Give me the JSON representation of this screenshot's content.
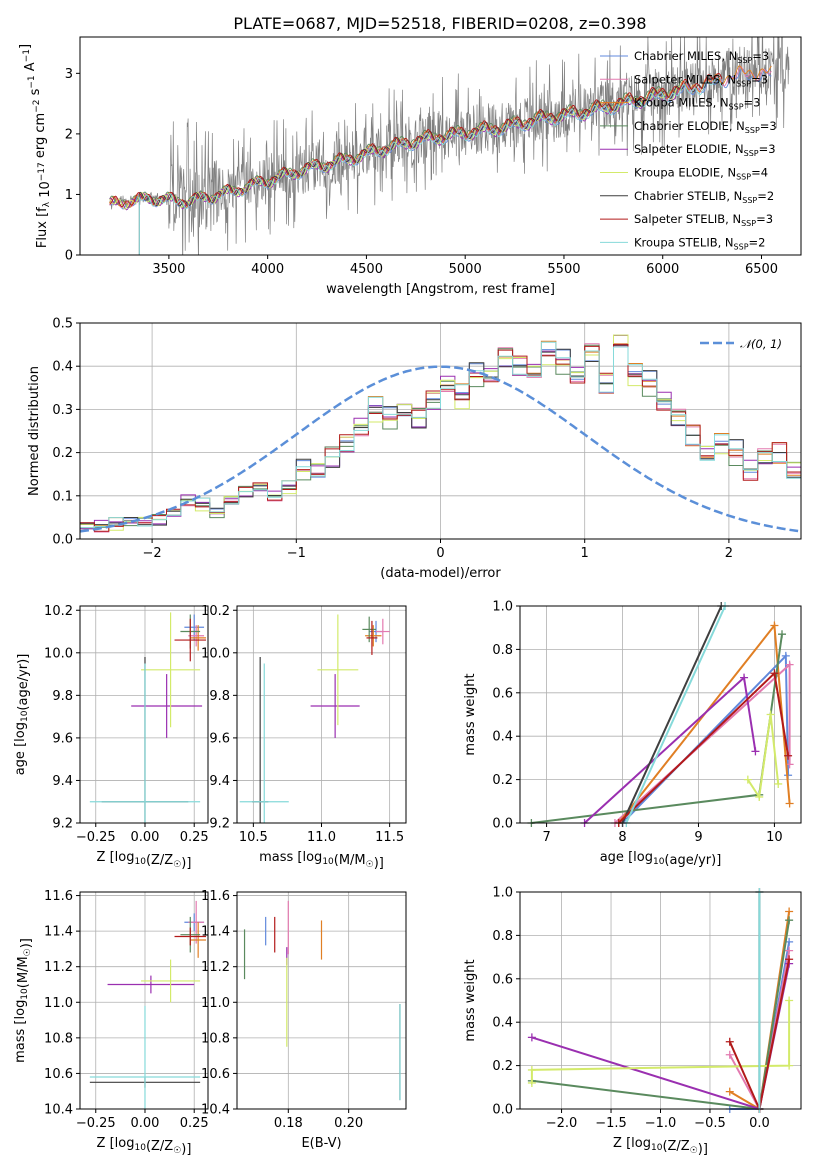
{
  "colors": {
    "Chabrier MILES": "#6189dc",
    "Salpeter MILES": "#e37ab0",
    "Kroupa MILES": "#e07f24",
    "Chabrier ELODIE": "#5a8a5e",
    "Salpeter ELODIE": "#9a2fb0",
    "Kroupa ELODIE": "#d3ea6a",
    "Chabrier STELIB": "#3f3f3f",
    "Salpeter STELIB": "#b21a1a",
    "Kroupa STELIB": "#86dada",
    "data": "#808080",
    "normal": "#5b8fd8"
  },
  "chart_data": [
    {
      "id": "spectrum",
      "type": "line",
      "title": "PLATE=0687, MJD=52518, FIBERID=0208, z=0.398",
      "xlabel": "wavelength [Angstrom, rest frame]",
      "ylabel": "Flux [f_λ 10^-17 erg cm^-2 s^-1 A^-1]",
      "xlim": [
        3050,
        6700
      ],
      "ylim": [
        0,
        3.6
      ],
      "xticks": [
        3500,
        4000,
        4500,
        5000,
        5500,
        6000,
        6500
      ],
      "yticks": [
        0,
        1,
        2,
        3
      ],
      "model_trend": [
        [
          3200,
          0.85
        ],
        [
          3400,
          0.95
        ],
        [
          3600,
          0.9
        ],
        [
          3800,
          1.05
        ],
        [
          4000,
          1.25
        ],
        [
          4200,
          1.45
        ],
        [
          4400,
          1.6
        ],
        [
          4600,
          1.8
        ],
        [
          4800,
          1.95
        ],
        [
          5000,
          2.05
        ],
        [
          5200,
          2.15
        ],
        [
          5400,
          2.3
        ],
        [
          5600,
          2.4
        ],
        [
          5800,
          2.55
        ],
        [
          6000,
          2.7
        ],
        [
          6200,
          2.85
        ],
        [
          6400,
          3.05
        ]
      ],
      "legend": [
        {
          "label": "Chabrier MILES, N",
          "nssp": "=3"
        },
        {
          "label": "Salpeter MILES, N",
          "nssp": "=3"
        },
        {
          "label": "Kroupa MILES, N",
          "nssp": "=3"
        },
        {
          "label": "Chabrier ELODIE, N",
          "nssp": "=3"
        },
        {
          "label": "Salpeter ELODIE, N",
          "nssp": "=3"
        },
        {
          "label": "Kroupa ELODIE, N",
          "nssp": "=4"
        },
        {
          "label": "Chabrier STELIB, N",
          "nssp": "=2"
        },
        {
          "label": "Salpeter STELIB, N",
          "nssp": "=3"
        },
        {
          "label": "Kroupa STELIB, N",
          "nssp": "=2"
        }
      ],
      "legend_sub": "SSP",
      "legend_position": "top-right"
    },
    {
      "id": "residuals",
      "type": "bar",
      "xlabel": "(data-model)/error",
      "ylabel": "Normed distribution",
      "xlim": [
        -2.5,
        2.5
      ],
      "ylim": [
        0,
        0.5
      ],
      "xticks": [
        -2,
        -1,
        0,
        1,
        2
      ],
      "yticks": [
        0.0,
        0.1,
        0.2,
        0.3,
        0.4,
        0.5
      ],
      "bin_edges_start": -2.5,
      "bin_width": 0.1,
      "histogram_mean": [
        0.03,
        0.03,
        0.035,
        0.04,
        0.04,
        0.045,
        0.06,
        0.09,
        0.08,
        0.06,
        0.09,
        0.11,
        0.12,
        0.1,
        0.12,
        0.16,
        0.16,
        0.19,
        0.22,
        0.26,
        0.3,
        0.28,
        0.3,
        0.28,
        0.32,
        0.36,
        0.33,
        0.38,
        0.38,
        0.42,
        0.4,
        0.39,
        0.43,
        0.41,
        0.38,
        0.43,
        0.36,
        0.46,
        0.38,
        0.36,
        0.32,
        0.28,
        0.24,
        0.2,
        0.22,
        0.2,
        0.16,
        0.19,
        0.2,
        0.16,
        0.12,
        0.1,
        0.09,
        0.07,
        0.07,
        0.06,
        0.05,
        0.05,
        0.04,
        0.03
      ],
      "normal_label": "𝒩(0, 1)",
      "legend_position": "top-right"
    },
    {
      "id": "age_Z",
      "type": "scatter",
      "xlabel": "Z [log10(Z/Z☉)]",
      "ylabel": "age  [log10(age/yr)]",
      "xlim": [
        -0.33,
        0.32
      ],
      "ylim": [
        9.2,
        10.22
      ],
      "xticks": [
        -0.25,
        0.0,
        0.25
      ],
      "xticklabels": [
        "−0.25",
        "0.00",
        "0.25"
      ],
      "yticks": [
        9.2,
        9.4,
        9.6,
        9.8,
        10.0,
        10.2
      ],
      "points": [
        {
          "model": "Chabrier MILES",
          "x": 0.25,
          "y": 10.12,
          "ex": 0.05,
          "ey": 0.06
        },
        {
          "model": "Salpeter MILES",
          "x": 0.26,
          "y": 10.08,
          "ex": 0.04,
          "ey": 0.05
        },
        {
          "model": "Kroupa MILES",
          "x": 0.27,
          "y": 10.07,
          "ex": 0.04,
          "ey": 0.06
        },
        {
          "model": "Chabrier ELODIE",
          "x": 0.23,
          "y": 10.1,
          "ex": 0.05,
          "ey": 0.08
        },
        {
          "model": "Salpeter ELODIE",
          "x": 0.11,
          "y": 9.75,
          "ex": 0.18,
          "ey": 0.15
        },
        {
          "model": "Kroupa ELODIE",
          "x": 0.13,
          "y": 9.92,
          "ex": 0.15,
          "ey": 0.27
        },
        {
          "model": "Chabrier STELIB",
          "x": 0.0,
          "y": 9.3,
          "ex": 0.22,
          "ey": 0.68
        },
        {
          "model": "Salpeter STELIB",
          "x": 0.23,
          "y": 10.06,
          "ex": 0.08,
          "ey": 0.1
        },
        {
          "model": "Kroupa STELIB",
          "x": 0.0,
          "y": 9.3,
          "ex": 0.28,
          "ey": 0.65
        }
      ]
    },
    {
      "id": "age_mass",
      "type": "scatter",
      "xlabel": "mass [log10(M/M☉)]",
      "xlim": [
        10.38,
        11.62
      ],
      "ylim": [
        9.2,
        10.22
      ],
      "xticks": [
        10.5,
        11.0,
        11.5
      ],
      "yticks": [
        9.2,
        9.4,
        9.6,
        9.8,
        10.0,
        10.2
      ],
      "points": [
        {
          "model": "Chabrier MILES",
          "x": 11.4,
          "y": 10.1,
          "ex": 0.05,
          "ey": 0.05
        },
        {
          "model": "Salpeter MILES",
          "x": 11.45,
          "y": 10.1,
          "ex": 0.05,
          "ey": 0.06
        },
        {
          "model": "Kroupa MILES",
          "x": 11.38,
          "y": 10.08,
          "ex": 0.06,
          "ey": 0.05
        },
        {
          "model": "Chabrier ELODIE",
          "x": 11.35,
          "y": 10.11,
          "ex": 0.05,
          "ey": 0.06
        },
        {
          "model": "Salpeter ELODIE",
          "x": 11.1,
          "y": 9.75,
          "ex": 0.18,
          "ey": 0.15
        },
        {
          "model": "Kroupa ELODIE",
          "x": 11.12,
          "y": 9.92,
          "ex": 0.15,
          "ey": 0.26
        },
        {
          "model": "Chabrier STELIB",
          "x": 10.55,
          "y": 9.3,
          "ex": 0.06,
          "ey": 0.68
        },
        {
          "model": "Salpeter STELIB",
          "x": 11.37,
          "y": 10.07,
          "ex": 0.04,
          "ey": 0.08
        },
        {
          "model": "Kroupa STELIB",
          "x": 10.58,
          "y": 9.3,
          "ex": 0.18,
          "ey": 0.65
        }
      ]
    },
    {
      "id": "weight_age",
      "type": "line",
      "xlabel": "age  [log10(age/yr)]",
      "ylabel": "mass weight",
      "xlim": [
        6.65,
        10.35
      ],
      "ylim": [
        0,
        1.0
      ],
      "xticks": [
        7,
        8,
        9,
        10
      ],
      "yticks": [
        0.0,
        0.2,
        0.4,
        0.6,
        0.8,
        1.0
      ],
      "series": [
        {
          "model": "Chabrier MILES",
          "x": [
            8.0,
            10.15,
            10.18
          ],
          "y": [
            0.0,
            0.77,
            0.22
          ]
        },
        {
          "model": "Salpeter MILES",
          "x": [
            7.9,
            10.2,
            10.2
          ],
          "y": [
            0.0,
            0.73,
            0.27
          ]
        },
        {
          "model": "Kroupa MILES",
          "x": [
            7.95,
            10.0,
            10.2
          ],
          "y": [
            0.0,
            0.91,
            0.09
          ]
        },
        {
          "model": "Chabrier ELODIE",
          "x": [
            6.8,
            9.8,
            10.1
          ],
          "y": [
            0.0,
            0.13,
            0.87
          ]
        },
        {
          "model": "Salpeter ELODIE",
          "x": [
            7.5,
            9.6,
            9.75
          ],
          "y": [
            0.0,
            0.67,
            0.33
          ]
        },
        {
          "model": "Kroupa ELODIE",
          "x": [
            9.65,
            9.8,
            9.95,
            10.05
          ],
          "y": [
            0.2,
            0.12,
            0.5,
            0.18
          ]
        },
        {
          "model": "Chabrier STELIB",
          "x": [
            8.0,
            9.3
          ],
          "y": [
            0.0,
            1.0
          ]
        },
        {
          "model": "Salpeter STELIB",
          "x": [
            7.95,
            10.0,
            10.18
          ],
          "y": [
            0.0,
            0.69,
            0.31
          ]
        },
        {
          "model": "Kroupa STELIB",
          "x": [
            8.05,
            9.35
          ],
          "y": [
            0.0,
            1.0
          ]
        }
      ]
    },
    {
      "id": "mass_Z",
      "type": "scatter",
      "xlabel": "Z [log10(Z/Z☉)]",
      "ylabel": "mass [log10(M/M☉)]",
      "xlim": [
        -0.33,
        0.32
      ],
      "ylim": [
        10.4,
        11.62
      ],
      "xticks": [
        -0.25,
        0.0,
        0.25
      ],
      "xticklabels": [
        "−0.25",
        "0.00",
        "0.25"
      ],
      "yticks": [
        10.4,
        10.6,
        10.8,
        11.0,
        11.2,
        11.4,
        11.6
      ],
      "points": [
        {
          "model": "Chabrier MILES",
          "x": 0.25,
          "y": 11.45,
          "ex": 0.05,
          "ey": 0.05
        },
        {
          "model": "Salpeter MILES",
          "x": 0.26,
          "y": 11.45,
          "ex": 0.04,
          "ey": 0.12
        },
        {
          "model": "Kroupa MILES",
          "x": 0.27,
          "y": 11.35,
          "ex": 0.04,
          "ey": 0.1
        },
        {
          "model": "Chabrier ELODIE",
          "x": 0.23,
          "y": 11.38,
          "ex": 0.05,
          "ey": 0.1
        },
        {
          "model": "Salpeter ELODIE",
          "x": 0.03,
          "y": 11.1,
          "ex": 0.22,
          "ey": 0.05
        },
        {
          "model": "Kroupa ELODIE",
          "x": 0.13,
          "y": 11.12,
          "ex": 0.15,
          "ey": 0.12
        },
        {
          "model": "Chabrier STELIB",
          "x": 0.0,
          "y": 10.55,
          "ex": 0.28,
          "ey": 0.03
        },
        {
          "model": "Salpeter STELIB",
          "x": 0.23,
          "y": 11.37,
          "ex": 0.08,
          "ey": 0.05
        },
        {
          "model": "Kroupa STELIB",
          "x": 0.0,
          "y": 10.58,
          "ex": 0.28,
          "ey": 0.4
        }
      ]
    },
    {
      "id": "mass_ebv",
      "type": "scatter",
      "xlabel": "E(B-V)",
      "xlim": [
        0.163,
        0.219
      ],
      "ylim": [
        10.4,
        11.62
      ],
      "xticks": [
        0.18,
        0.2
      ],
      "xticklabels": [
        "0.18",
        "0.20"
      ],
      "yticks": [
        10.4,
        10.6,
        10.8,
        11.0,
        11.2,
        11.4,
        11.6
      ],
      "points": [
        {
          "model": "Chabrier MILES",
          "x": 0.1725,
          "y": 11.4,
          "ey": 0.08
        },
        {
          "model": "Salpeter MILES",
          "x": 0.18,
          "y": 11.42,
          "ey": 0.15
        },
        {
          "model": "Kroupa MILES",
          "x": 0.191,
          "y": 11.35,
          "ey": 0.11
        },
        {
          "model": "Chabrier ELODIE",
          "x": 0.1655,
          "y": 11.27,
          "ey": 0.14
        },
        {
          "model": "Salpeter ELODIE",
          "x": 0.1795,
          "y": 11.26,
          "ey": 0.05
        },
        {
          "model": "Kroupa ELODIE",
          "x": 0.1795,
          "y": 11.0,
          "ey": 0.25
        },
        {
          "model": "Chabrier STELIB",
          "x": 0.217,
          "y": 10.72,
          "ey": 0.27
        },
        {
          "model": "Salpeter STELIB",
          "x": 0.1755,
          "y": 11.38,
          "ey": 0.1
        },
        {
          "model": "Kroupa STELIB",
          "x": 0.217,
          "y": 10.72,
          "ey": 0.27
        }
      ]
    },
    {
      "id": "weight_Z",
      "type": "line",
      "xlabel": "Z [log10(Z/Z☉)]",
      "ylabel": "mass weight",
      "xlim": [
        -2.42,
        0.42
      ],
      "ylim": [
        0,
        1.0
      ],
      "xticks": [
        -2.0,
        -1.5,
        -1.0,
        -0.5,
        0.0
      ],
      "xticklabels": [
        "−2.0",
        "−1.5",
        "−1.0",
        "−0.5",
        "0.0"
      ],
      "yticks": [
        0.0,
        0.2,
        0.4,
        0.6,
        0.8,
        1.0
      ],
      "series": [
        {
          "model": "Chabrier MILES",
          "x": [
            -0.3,
            0.0,
            0.3
          ],
          "y": [
            0.0,
            0.0,
            0.77
          ]
        },
        {
          "model": "Salpeter MILES",
          "x": [
            -0.3,
            0.0,
            0.3
          ],
          "y": [
            0.25,
            0.0,
            0.73
          ]
        },
        {
          "model": "Kroupa MILES",
          "x": [
            -0.3,
            0.0,
            0.3
          ],
          "y": [
            0.08,
            0.0,
            0.91
          ]
        },
        {
          "model": "Chabrier ELODIE",
          "x": [
            -2.3,
            0.0,
            0.3
          ],
          "y": [
            0.13,
            0.0,
            0.87
          ]
        },
        {
          "model": "Salpeter ELODIE",
          "x": [
            -2.3,
            0.0,
            0.3
          ],
          "y": [
            0.33,
            0.0,
            0.67
          ]
        },
        {
          "model": "Kroupa ELODIE",
          "x": [
            -2.3,
            -2.3,
            0.3,
            0.3
          ],
          "y": [
            0.12,
            0.18,
            0.2,
            0.5
          ]
        },
        {
          "model": "Chabrier STELIB",
          "x": [
            0.0,
            0.0
          ],
          "y": [
            0.0,
            1.0
          ]
        },
        {
          "model": "Salpeter STELIB",
          "x": [
            -0.3,
            0.0,
            0.3
          ],
          "y": [
            0.31,
            0.0,
            0.69
          ]
        },
        {
          "model": "Kroupa STELIB",
          "x": [
            0.0,
            0.0
          ],
          "y": [
            0.0,
            1.0
          ]
        }
      ]
    }
  ]
}
